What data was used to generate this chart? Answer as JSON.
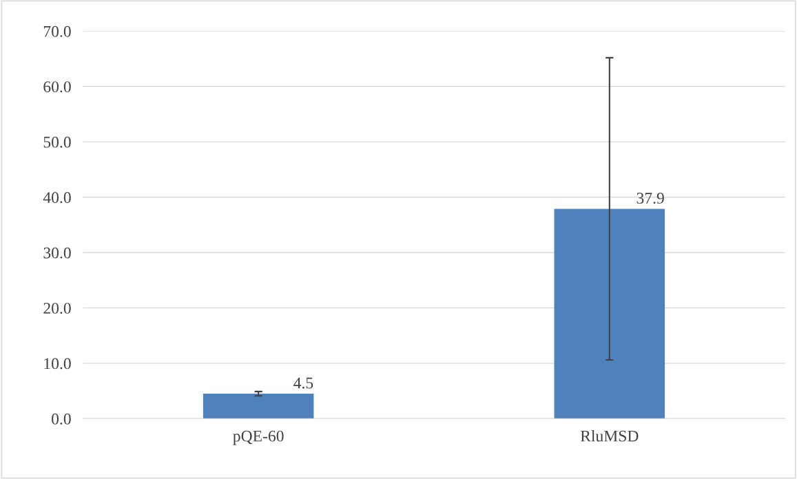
{
  "chart_data": {
    "type": "bar",
    "categories": [
      "pQE-60",
      "RluMSD"
    ],
    "values": [
      4.5,
      37.9
    ],
    "errors": [
      0.4,
      27.3
    ],
    "color": "#4f81bd",
    "data_labels": true,
    "ylim": [
      0,
      70
    ],
    "yticks": [
      {
        "value": 0,
        "label": "0.0"
      },
      {
        "value": 10,
        "label": "10.0"
      },
      {
        "value": 20,
        "label": "20.0"
      },
      {
        "value": 30,
        "label": "30.0"
      },
      {
        "value": 40,
        "label": "40.0"
      },
      {
        "value": 50,
        "label": "50.0"
      },
      {
        "value": 60,
        "label": "60.0"
      },
      {
        "value": 70,
        "label": "70.0"
      }
    ],
    "grid": "y"
  }
}
